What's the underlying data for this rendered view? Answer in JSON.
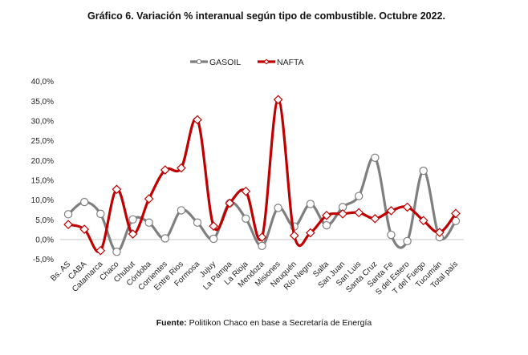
{
  "chart_data": {
    "type": "line",
    "title": "Gráfico 6. Variación % interanual según tipo de combustible. Octubre 2022.",
    "xlabel": "",
    "ylabel": "",
    "ylim": [
      -5,
      40
    ],
    "yticks": [
      -5,
      0,
      5,
      10,
      15,
      20,
      25,
      30,
      35,
      40
    ],
    "ytick_labels": [
      "-5,0%",
      "0,0%",
      "5,0%",
      "10,0%",
      "15,0%",
      "20,0%",
      "25,0%",
      "30,0%",
      "35,0%",
      "40,0%"
    ],
    "grid": false,
    "legend_position": "top-center",
    "categories": [
      "Bs. AS",
      "CABA",
      "Catamarca",
      "Chaco",
      "Chubut",
      "Córdoba",
      "Corrientes",
      "Entre Rios",
      "Formosa",
      "Jujuy",
      "La Pampa",
      "La Rioja",
      "Mendoza",
      "Misiones",
      "Neuquén",
      "Río Negro",
      "Salta",
      "San Juan",
      "San Luis",
      "Santa Cruz",
      "Santa Fe",
      "S del Estero",
      "T del Fuego",
      "Tucumán",
      "Total país"
    ],
    "series": [
      {
        "name": "GASOIL",
        "color": "#7f7f7f",
        "marker": "circle",
        "values": [
          6.4,
          9.5,
          6.5,
          -3.1,
          5.1,
          4.3,
          0.3,
          7.4,
          4.3,
          0.2,
          9.2,
          5.3,
          -1.6,
          8.0,
          3.3,
          9.0,
          3.6,
          8.2,
          11.0,
          20.7,
          1.2,
          -0.4,
          17.4,
          0.6,
          4.7
        ]
      },
      {
        "name": "NAFTA",
        "color": "#c00000",
        "marker": "diamond",
        "values": [
          3.8,
          2.6,
          -2.8,
          12.7,
          1.4,
          10.3,
          17.6,
          18.1,
          30.3,
          3.4,
          9.2,
          12.2,
          0.6,
          35.4,
          1.0,
          1.7,
          6.1,
          6.5,
          6.8,
          5.3,
          7.3,
          8.2,
          4.8,
          1.8,
          6.6
        ]
      }
    ]
  },
  "footer": {
    "label": "Fuente:",
    "text": " Politikon Chaco en base a Secretaría de Energía"
  }
}
